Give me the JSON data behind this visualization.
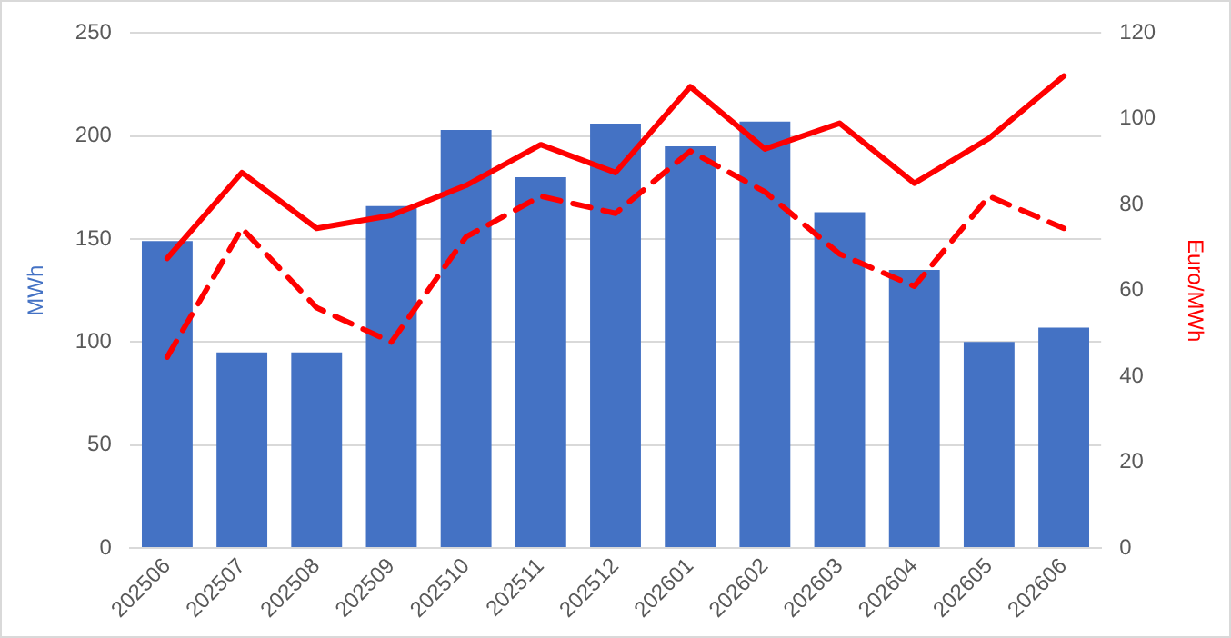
{
  "chart_data": {
    "type": "bar",
    "ylabel": "MWh",
    "y2label": "Euro/MWh",
    "categories": [
      "202506",
      "202507",
      "202508",
      "202509",
      "202510",
      "202511",
      "202512",
      "202601",
      "202602",
      "202603",
      "202604",
      "202605",
      "202606"
    ],
    "series": [
      {
        "color": "#4472c4",
        "values": [
          149,
          95,
          95,
          166,
          203,
          180,
          206,
          195,
          207,
          163,
          135,
          100,
          107
        ]
      },
      {
        "type": "line",
        "axis": "y2",
        "color": "#ff0000",
        "line_style": "solid",
        "values": [
          67.5,
          87.5,
          74.5,
          77.5,
          84.5,
          94,
          87.5,
          107.5,
          93,
          99,
          85,
          95.5,
          110
        ]
      },
      {
        "type": "line",
        "axis": "y2",
        "color": "#ff0000",
        "line_style": "dashed",
        "values": [
          44.5,
          74.5,
          56,
          48,
          72.5,
          82,
          78,
          92.5,
          83,
          68.5,
          61,
          82,
          74.5
        ]
      }
    ],
    "ylim": [
      0,
      250
    ],
    "yticks": [
      0,
      50,
      100,
      150,
      200,
      250
    ],
    "y2lim": [
      0,
      120
    ],
    "y2ticks": [
      0,
      20,
      40,
      60,
      80,
      100,
      120
    ],
    "grid": "y",
    "legend": false,
    "marker": "none"
  }
}
